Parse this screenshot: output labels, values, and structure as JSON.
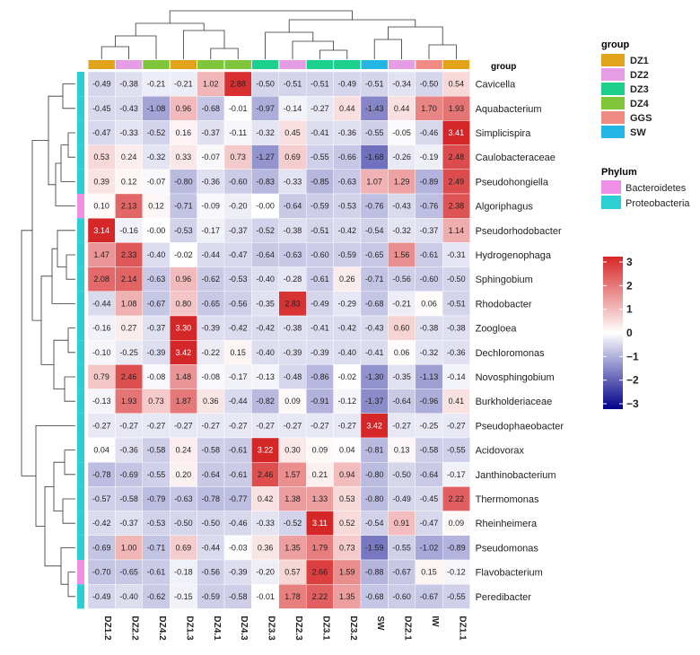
{
  "chart_data": {
    "type": "heatmap",
    "columns": [
      "DZ1.2",
      "DZ2.2",
      "DZ4.2",
      "DZ1.3",
      "DZ4.1",
      "DZ4.3",
      "DZ3.3",
      "DZ2.3",
      "DZ3.1",
      "DZ3.2",
      "SW",
      "DZ2.1",
      "IW",
      "DZ1.1"
    ],
    "column_groups": [
      "DZ1",
      "DZ2",
      "DZ4",
      "DZ1",
      "DZ4",
      "DZ4",
      "DZ3",
      "DZ2",
      "DZ3",
      "DZ3",
      "SW",
      "DZ2",
      "GGS",
      "DZ1"
    ],
    "rows": [
      "Cavicella",
      "Aquabacterium",
      "Simplicispira",
      "Caulobacteraceae",
      "Pseudohongiella",
      "Algoriphagus",
      "Pseudorhodobacter",
      "Hydrogenophaga",
      "Sphingobium",
      "Rhodobacter",
      "Zoogloea",
      "Dechloromonas",
      "Novosphingobium",
      "Burkholderiaceae",
      "Pseudophaeobacter",
      "Acidovorax",
      "Janthinobacterium",
      "Thermomonas",
      "Rheinheimera",
      "Pseudomonas",
      "Flavobacterium",
      "Peredibacter"
    ],
    "row_phylum": [
      "Proteobacteria",
      "Proteobacteria",
      "Proteobacteria",
      "Proteobacteria",
      "Proteobacteria",
      "Bacteroidetes",
      "Proteobacteria",
      "Proteobacteria",
      "Proteobacteria",
      "Proteobacteria",
      "Proteobacteria",
      "Proteobacteria",
      "Proteobacteria",
      "Proteobacteria",
      "Proteobacteria",
      "Proteobacteria",
      "Proteobacteria",
      "Proteobacteria",
      "Proteobacteria",
      "Proteobacteria",
      "Bacteroidetes",
      "Proteobacteria"
    ],
    "values": [
      [
        -0.49,
        -0.38,
        -0.21,
        -0.21,
        1.02,
        2.88,
        -0.5,
        -0.51,
        -0.51,
        -0.49,
        -0.51,
        -0.34,
        -0.5,
        0.54
      ],
      [
        -0.45,
        -0.43,
        -1.08,
        0.96,
        -0.68,
        -0.01,
        -0.97,
        -0.14,
        -0.27,
        0.44,
        -1.43,
        0.44,
        1.7,
        1.93
      ],
      [
        -0.47,
        -0.33,
        -0.52,
        0.16,
        -0.37,
        -0.11,
        -0.32,
        0.45,
        -0.41,
        -0.36,
        -0.55,
        -0.05,
        -0.46,
        3.41
      ],
      [
        0.53,
        0.24,
        -0.32,
        0.33,
        -0.07,
        0.73,
        -1.27,
        0.69,
        -0.55,
        -0.66,
        -1.68,
        -0.26,
        -0.19,
        2.48
      ],
      [
        0.39,
        0.12,
        -0.07,
        -0.8,
        -0.36,
        -0.6,
        -0.83,
        -0.33,
        -0.85,
        -0.63,
        1.07,
        1.29,
        -0.89,
        2.49
      ],
      [
        0.1,
        2.13,
        0.12,
        -0.71,
        -0.09,
        -0.2,
        -0.0,
        -0.64,
        -0.59,
        -0.53,
        -0.76,
        -0.43,
        -0.76,
        2.38
      ],
      [
        3.14,
        -0.16,
        0.0,
        -0.53,
        -0.17,
        -0.37,
        -0.52,
        -0.38,
        -0.51,
        -0.42,
        -0.54,
        -0.32,
        -0.37,
        1.14
      ],
      [
        1.47,
        2.33,
        -0.4,
        -0.02,
        -0.44,
        -0.47,
        -0.64,
        -0.63,
        -0.6,
        -0.59,
        -0.65,
        1.56,
        -0.61,
        -0.31
      ],
      [
        2.08,
        2.14,
        -0.63,
        0.96,
        -0.62,
        -0.53,
        -0.4,
        -0.28,
        -0.61,
        0.26,
        -0.71,
        -0.56,
        -0.6,
        -0.5
      ],
      [
        -0.44,
        1.08,
        -0.67,
        0.8,
        -0.65,
        -0.56,
        -0.35,
        2.83,
        -0.49,
        -0.29,
        -0.68,
        -0.21,
        0.06,
        -0.51
      ],
      [
        -0.16,
        0.27,
        -0.37,
        3.3,
        -0.39,
        -0.42,
        -0.42,
        -0.38,
        -0.41,
        -0.42,
        -0.43,
        0.6,
        -0.38,
        -0.38
      ],
      [
        -0.1,
        -0.25,
        -0.39,
        3.42,
        -0.22,
        0.15,
        -0.4,
        -0.39,
        -0.39,
        -0.4,
        -0.41,
        0.06,
        -0.32,
        -0.36
      ],
      [
        0.79,
        2.46,
        -0.08,
        1.48,
        -0.08,
        -0.17,
        -0.13,
        -0.48,
        -0.86,
        -0.02,
        -1.3,
        -0.35,
        -1.13,
        -0.14
      ],
      [
        -0.13,
        1.93,
        0.73,
        1.87,
        0.36,
        -0.44,
        -0.82,
        0.09,
        -0.91,
        -0.12,
        -1.37,
        -0.64,
        -0.96,
        0.41
      ],
      [
        -0.27,
        -0.27,
        -0.27,
        -0.27,
        -0.27,
        -0.27,
        -0.27,
        -0.27,
        -0.27,
        -0.27,
        3.42,
        -0.27,
        -0.25,
        -0.27
      ],
      [
        0.04,
        -0.36,
        -0.58,
        0.24,
        -0.58,
        -0.61,
        3.22,
        0.3,
        0.09,
        0.04,
        -0.81,
        0.13,
        -0.58,
        -0.55
      ],
      [
        -0.78,
        -0.69,
        -0.55,
        0.2,
        -0.64,
        -0.61,
        2.46,
        1.57,
        0.21,
        0.94,
        -0.8,
        -0.5,
        -0.64,
        -0.17
      ],
      [
        -0.57,
        -0.58,
        -0.79,
        -0.63,
        -0.78,
        -0.77,
        0.42,
        1.38,
        1.33,
        0.53,
        -0.8,
        -0.49,
        -0.45,
        2.22
      ],
      [
        -0.42,
        -0.37,
        -0.53,
        -0.5,
        -0.5,
        -0.46,
        -0.33,
        -0.52,
        3.11,
        0.52,
        -0.54,
        0.91,
        -0.47,
        0.09
      ],
      [
        -0.69,
        1.0,
        -0.71,
        0.69,
        -0.44,
        -0.03,
        0.36,
        1.35,
        1.79,
        0.73,
        -1.59,
        -0.55,
        -1.02,
        -0.89
      ],
      [
        -0.7,
        -0.65,
        -0.61,
        -0.18,
        -0.56,
        -0.39,
        -0.2,
        0.57,
        2.66,
        1.59,
        -0.88,
        -0.67,
        0.15,
        -0.12
      ],
      [
        -0.49,
        -0.4,
        -0.62,
        -0.15,
        -0.59,
        -0.58,
        -0.01,
        1.78,
        2.22,
        1.35,
        -0.68,
        -0.6,
        -0.67,
        -0.55
      ]
    ],
    "colorscale": {
      "min": -3,
      "mid": 0,
      "max": 3,
      "low_color": "#00008b",
      "mid_color": "#ffffff",
      "high_color": "#d62728",
      "ticks": [
        "3",
        "2",
        "1",
        "0",
        "−1",
        "−2",
        "−3"
      ]
    },
    "group_legend": {
      "title": "group",
      "items": [
        {
          "label": "DZ1",
          "color": "#e0a31a"
        },
        {
          "label": "DZ2",
          "color": "#e59de6"
        },
        {
          "label": "DZ3",
          "color": "#1dcf8c"
        },
        {
          "label": "DZ4",
          "color": "#7fc63a"
        },
        {
          "label": "GGS",
          "color": "#f08b84"
        },
        {
          "label": "SW",
          "color": "#22b5e6"
        }
      ]
    },
    "phylum_legend": {
      "title": "Phylum",
      "items": [
        {
          "label": "Bacteroidetes",
          "color": "#f08fe8"
        },
        {
          "label": "Proteobacteria",
          "color": "#2cd0d3"
        }
      ]
    },
    "annotation_label": "group"
  }
}
